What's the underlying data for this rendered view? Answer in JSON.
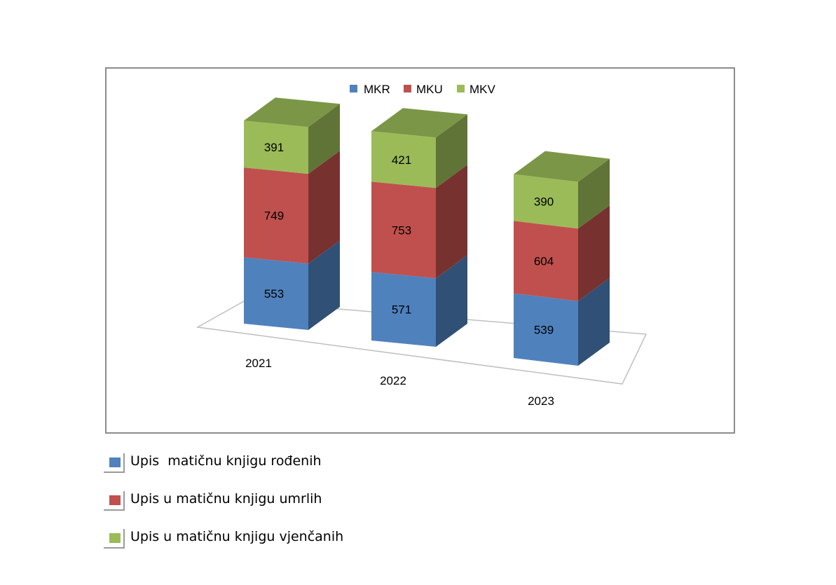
{
  "colors": {
    "MKR": "#4F81BD",
    "MKU": "#C0504D",
    "MKV": "#9BBB59"
  },
  "chart_data": {
    "type": "bar",
    "stacked": true,
    "three_d": true,
    "categories": [
      "2021",
      "2022",
      "2023"
    ],
    "series": [
      {
        "name": "MKR",
        "values": [
          553,
          571,
          539
        ]
      },
      {
        "name": "MKU",
        "values": [
          749,
          753,
          604
        ]
      },
      {
        "name": "MKV",
        "values": [
          391,
          421,
          390
        ]
      }
    ],
    "data_labels": true,
    "legend_position": "top",
    "grid": false
  },
  "legend": {
    "items": [
      "MKR",
      "MKU",
      "MKV"
    ]
  },
  "external_legend": {
    "items": [
      {
        "label": "Upis  matičnu knjigu rođenih",
        "series": "MKR"
      },
      {
        "label": "Upis u matičnu knjigu umrlih",
        "series": "MKU"
      },
      {
        "label": "Upis u matičnu knjigu vjenčanih",
        "series": "MKV"
      }
    ]
  }
}
